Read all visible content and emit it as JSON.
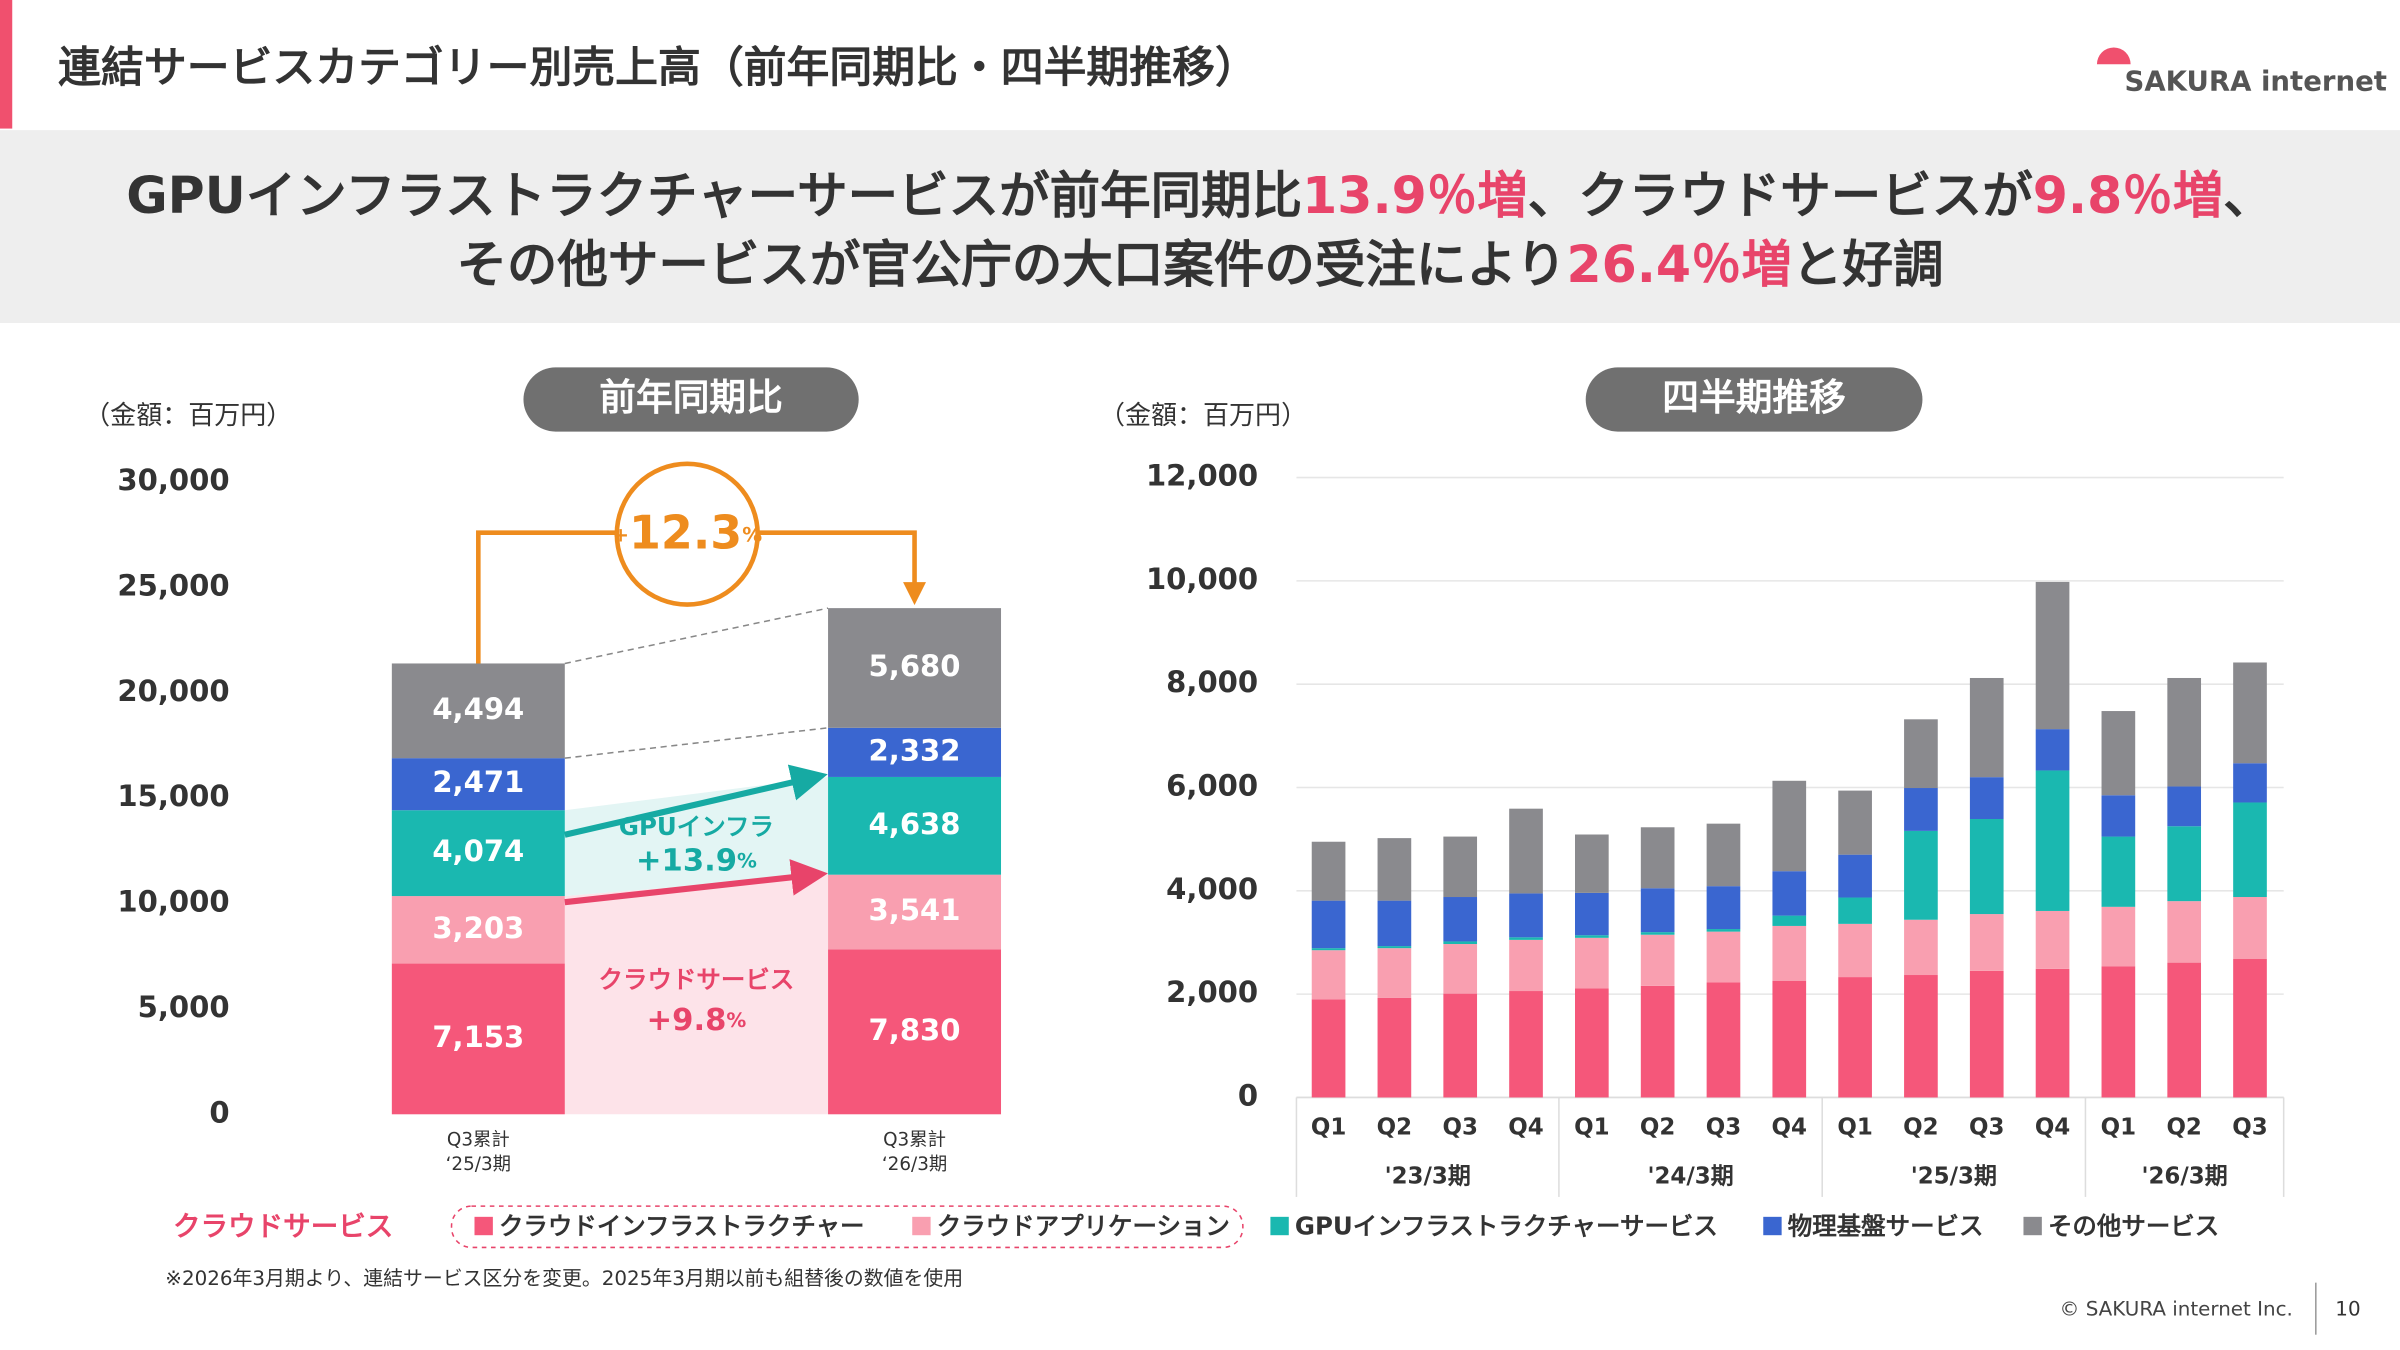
{
  "header": {
    "title": "連結サービスカテゴリー別売上高（前年同期比・四半期推移）",
    "logo": "SAKURA internet"
  },
  "banner": {
    "highlight_color": "#e8446a",
    "lines": [
      [
        {
          "text": "GPUインフラストラクチャーサービスが前年同期比"
        },
        {
          "text": "13.9％増",
          "highlight": true
        },
        {
          "text": "、クラウドサービスが"
        },
        {
          "text": "9.8％増",
          "highlight": true
        },
        {
          "text": "、"
        }
      ],
      [
        {
          "text": "その他サービスが官公庁の大口案件の受注により"
        },
        {
          "text": "26.4％増",
          "highlight": true
        },
        {
          "text": "と好調"
        }
      ]
    ]
  },
  "legend": {
    "group_label": "クラウドサービス",
    "group_color": "#e8446a"
  },
  "footnote": "※2026年3月期より、連結サービス区分を変更。2025年3月期以前も組替後の数値を使用",
  "footer": {
    "copyright": "© SAKURA internet Inc.",
    "page": "10"
  },
  "chart_data": [
    {
      "type": "stacked_bar",
      "title": "前年同期比",
      "unit_label": "（金額：百万円）",
      "categories": [
        [
          "Q3累計",
          "‘25/3期"
        ],
        [
          "Q3累計",
          "‘26/3期"
        ]
      ],
      "series": [
        {
          "color": "#f5577a",
          "values": [
            7153,
            7830
          ],
          "value_labels": [
            "7,153",
            "7,830"
          ]
        },
        {
          "color": "#f99fb0",
          "values": [
            3203,
            3541
          ],
          "value_labels": [
            "3,203",
            "3,541"
          ]
        },
        {
          "color": "#1ab8b0",
          "values": [
            4074,
            4638
          ],
          "value_labels": [
            "4,074",
            "4,638"
          ]
        },
        {
          "color": "#3a66d0",
          "values": [
            2471,
            2332
          ],
          "value_labels": [
            "2,471",
            "2,332"
          ]
        },
        {
          "color": "#8a8a8e",
          "values": [
            4494,
            5680
          ],
          "value_labels": [
            "4,494",
            "5,680"
          ]
        }
      ],
      "ylim": [
        0,
        30000
      ],
      "yticks": [
        0,
        {
          "value": 5000,
          "label": "5,000"
        },
        {
          "value": 10000,
          "label": "10,000"
        },
        {
          "value": 15000,
          "label": "15,000"
        },
        {
          "value": 20000,
          "label": "20,000"
        },
        {
          "value": 25000,
          "label": "25,000"
        },
        {
          "value": 30000,
          "label": "30,000"
        }
      ],
      "total_change": {
        "sign": "+",
        "number": 12.3,
        "unit": "%",
        "color": "#ee8c1e"
      },
      "segment_changes": [
        {
          "label": "GPUインフラ",
          "sign": "+",
          "number": 13.9,
          "unit": "%",
          "color": "#16aaa3"
        },
        {
          "label": "クラウドサービス",
          "sign": "+",
          "number": 9.8,
          "unit": "%",
          "color": "#e8446a"
        }
      ]
    },
    {
      "type": "stacked_bar",
      "title": "四半期推移",
      "unit_label": "（金額：百万円）",
      "groups": [
        {
          "label": "'23/3期",
          "categories": [
            "Q1",
            "Q2",
            "Q3",
            "Q4"
          ]
        },
        {
          "label": "'24/3期",
          "categories": [
            "Q1",
            "Q2",
            "Q3",
            "Q4"
          ]
        },
        {
          "label": "'25/3期",
          "categories": [
            "Q1",
            "Q2",
            "Q3",
            "Q4"
          ]
        },
        {
          "label": "'26/3期",
          "categories": [
            "Q1",
            "Q2",
            "Q3"
          ]
        }
      ],
      "series": [
        {
          "name": "クラウドインフラストラクチャー",
          "color": "#f5577a",
          "values": [
            1900,
            1930,
            2010,
            2060,
            2110,
            2160,
            2230,
            2260,
            2330,
            2370,
            2450,
            2490,
            2540,
            2610,
            2680
          ]
        },
        {
          "name": "クラウドアプリケーション",
          "color": "#f99fb0",
          "values": [
            950,
            960,
            960,
            990,
            980,
            990,
            980,
            1060,
            1030,
            1070,
            1100,
            1120,
            1150,
            1190,
            1200
          ]
        },
        {
          "name": "GPUインフラストラクチャーサービス",
          "color": "#1ab8b0",
          "values": [
            40,
            40,
            50,
            50,
            50,
            50,
            50,
            200,
            510,
            1720,
            1840,
            2720,
            1360,
            1450,
            1830
          ]
        },
        {
          "name": "物理基盤サービス",
          "color": "#3a66d0",
          "values": [
            920,
            880,
            860,
            850,
            820,
            850,
            830,
            860,
            830,
            830,
            810,
            800,
            800,
            770,
            760
          ]
        },
        {
          "name": "その他サービス",
          "color": "#8a8a8e",
          "values": [
            1140,
            1210,
            1170,
            1640,
            1130,
            1180,
            1210,
            1750,
            1240,
            1330,
            1920,
            2850,
            1630,
            2100,
            1950
          ]
        }
      ],
      "ylim": [
        0,
        12000
      ],
      "yticks": [
        0,
        {
          "value": 2000,
          "label": "2,000"
        },
        {
          "value": 4000,
          "label": "4,000"
        },
        {
          "value": 6000,
          "label": "6,000"
        },
        {
          "value": 8000,
          "label": "8,000"
        },
        {
          "value": 10000,
          "label": "10,000"
        },
        {
          "value": 12000,
          "label": "12,000"
        }
      ],
      "grid": true
    }
  ]
}
